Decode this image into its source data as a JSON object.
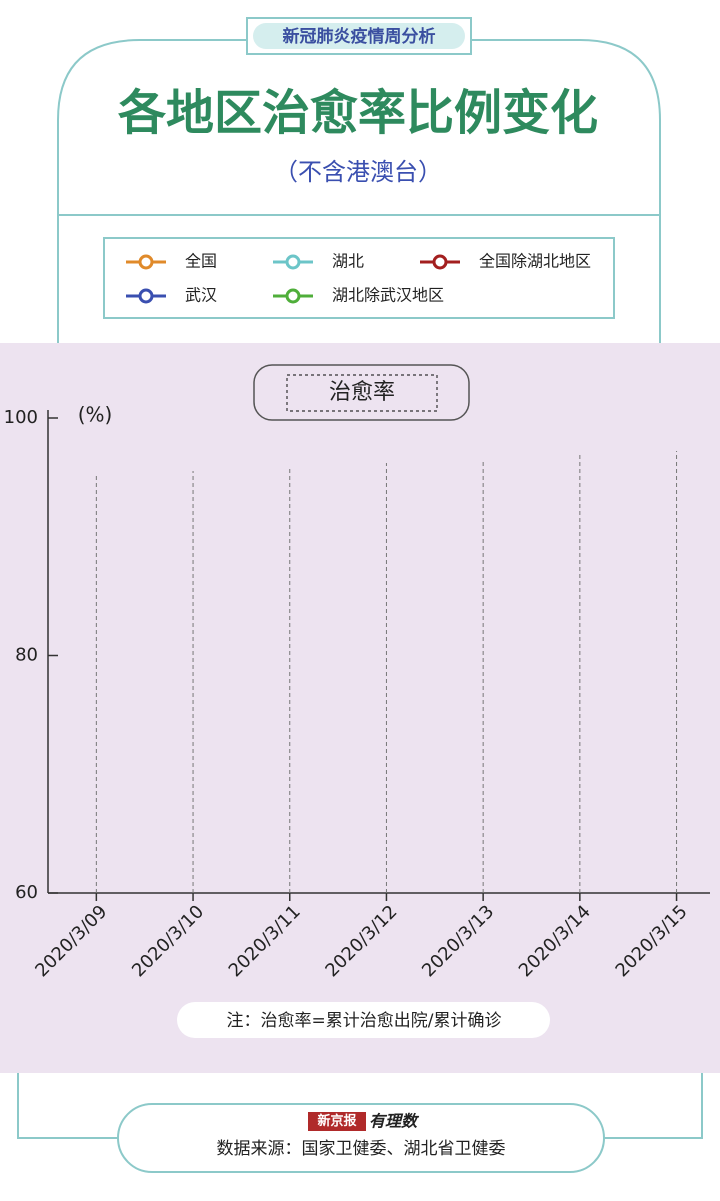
{
  "header": {
    "tag": "新冠肺炎疫情周分析"
  },
  "chart_data": {
    "type": "line",
    "title": "各地区治愈率比例变化",
    "subtitle": "（不含港澳台）",
    "panel_title": "治愈率",
    "y_label": "(%)",
    "categories": [
      "2020/3/09",
      "2020/3/10",
      "2020/3/11",
      "2020/3/12",
      "2020/3/13",
      "2020/3/14",
      "2020/3/15"
    ],
    "series": [
      {
        "name": "全国",
        "color": "#e08a2a",
        "values": [
          null,
          null,
          null,
          null,
          null,
          null,
          null
        ]
      },
      {
        "name": "湖北",
        "color": "#6cc5c8",
        "values": [
          null,
          null,
          null,
          null,
          null,
          null,
          null
        ]
      },
      {
        "name": "全国除湖北地区",
        "color": "#a31f1f",
        "values": [
          null,
          null,
          null,
          null,
          null,
          null,
          null
        ]
      },
      {
        "name": "武汉",
        "color": "#3a4fb0",
        "values": [
          null,
          null,
          null,
          null,
          null,
          null,
          null
        ]
      },
      {
        "name": "湖北除武汉地区",
        "color": "#4fae3a",
        "values": [
          null,
          null,
          null,
          null,
          null,
          null,
          null
        ]
      }
    ],
    "ylim": [
      60,
      100
    ],
    "yticks": [
      60,
      80,
      100
    ],
    "note": "注：治愈率=累计治愈出院/累计确诊"
  },
  "footer": {
    "brand": "新京报",
    "logo": "有理数",
    "source": "数据来源：国家卫健委、湖北省卫健委"
  }
}
